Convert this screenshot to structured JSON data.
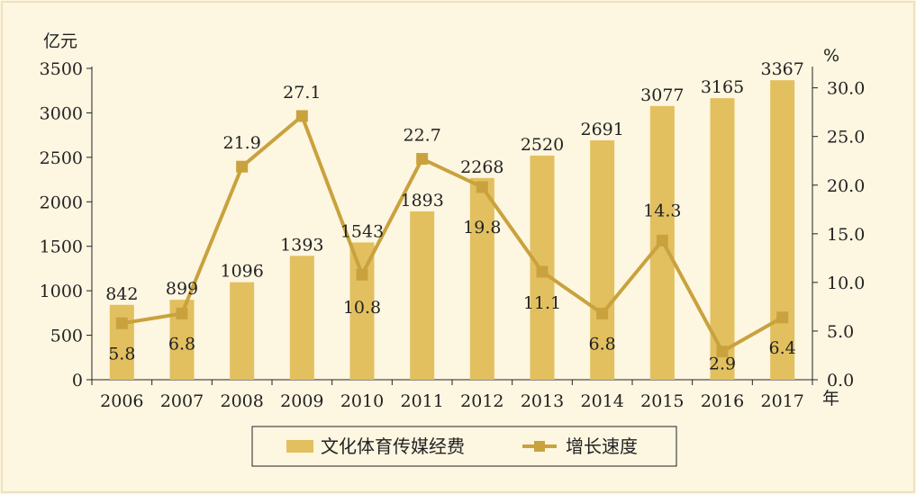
{
  "chart_data": {
    "type": "bar+line",
    "x_unit": "年",
    "categories": [
      "2006",
      "2007",
      "2008",
      "2009",
      "2010",
      "2011",
      "2012",
      "2013",
      "2014",
      "2015",
      "2016",
      "2017"
    ],
    "y_left": {
      "unit": "亿元",
      "ylim": [
        0,
        3500
      ],
      "ticks": [
        "0",
        "500",
        "1000",
        "1500",
        "2000",
        "2500",
        "3000",
        "3500"
      ]
    },
    "y_right": {
      "unit": "%",
      "ylim": [
        0,
        32
      ],
      "ticks": [
        "0.0",
        "5.0",
        "10.0",
        "15.0",
        "20.0",
        "25.0",
        "30.0"
      ]
    },
    "series": [
      {
        "name": "文化体育传媒经费",
        "type": "bar",
        "axis": "left",
        "values": [
          842,
          899,
          1096,
          1393,
          1543,
          1893,
          2268,
          2520,
          2691,
          3077,
          3165,
          3367
        ],
        "labels": [
          "842",
          "899",
          "1096",
          "1393",
          "1543",
          "1893",
          "2268",
          "2520",
          "2691",
          "3077",
          "3165",
          "3367"
        ],
        "color": "#e2c060"
      },
      {
        "name": "增长速度",
        "type": "line",
        "axis": "right",
        "values": [
          5.8,
          6.8,
          21.9,
          27.1,
          10.8,
          22.7,
          19.8,
          11.1,
          6.8,
          14.3,
          2.9,
          6.4
        ],
        "labels": [
          "5.8",
          "6.8",
          "21.9",
          "27.1",
          "10.8",
          "22.7",
          "19.8",
          "11.1",
          "6.8",
          "14.3",
          "2.9",
          "6.4"
        ],
        "color": "#c9a23e"
      }
    ],
    "legend": {
      "position": "bottom-center",
      "items": [
        {
          "label": "文化体育传媒经费",
          "marker": "bar"
        },
        {
          "label": "增长速度",
          "marker": "line"
        }
      ]
    },
    "colors": {
      "background": "#fdf6e1",
      "bar": "#e2c060",
      "line": "#c9a23e",
      "axis": "#222222"
    }
  }
}
